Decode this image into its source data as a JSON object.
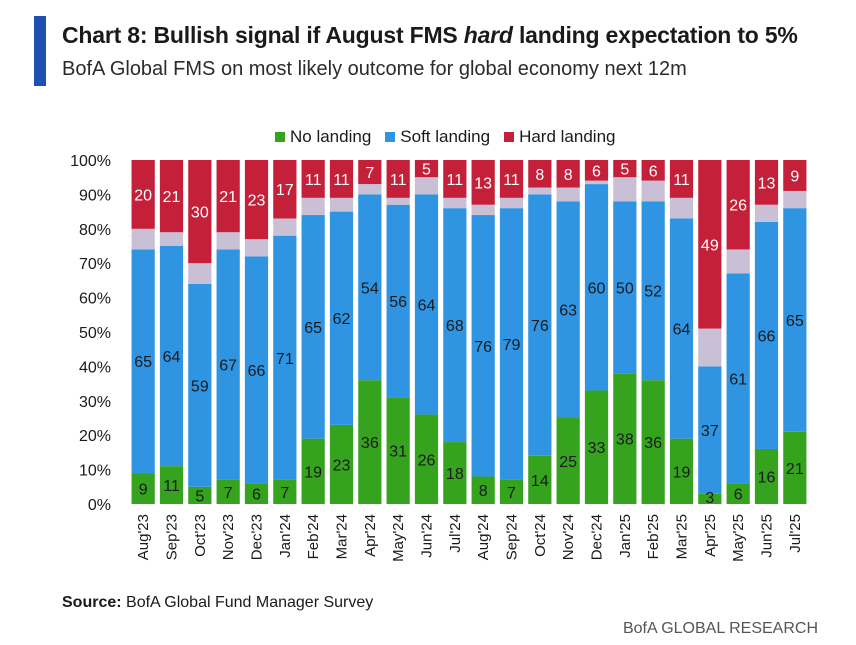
{
  "header": {
    "title_prefix": "Chart 8: Bullish signal if August FMS ",
    "title_emph": "hard",
    "title_suffix": " landing expectation to 5%",
    "subtitle": "BofA Global FMS on most likely outcome for global economy next 12m"
  },
  "colors": {
    "accent": "#1f4fb0",
    "no_landing": "#36a31f",
    "soft_landing": "#2f95e3",
    "hard_landing": "#c4203a",
    "other": "#c9c0d6"
  },
  "footer": {
    "source_label": "Source:",
    "source_text": " BofA Global Fund Manager Survey",
    "brand": "BofA GLOBAL RESEARCH"
  },
  "chart_data": {
    "type": "bar",
    "stacked": true,
    "title": "Chart 8: Bullish signal if August FMS hard landing expectation to 5%",
    "subtitle": "BofA Global FMS on most likely outcome for global economy next 12m",
    "xlabel": "",
    "ylabel": "",
    "ylim": [
      0,
      100
    ],
    "y_ticks": [
      "0%",
      "10%",
      "20%",
      "30%",
      "40%",
      "50%",
      "60%",
      "70%",
      "80%",
      "90%",
      "100%"
    ],
    "legend_position": "top",
    "categories": [
      "Aug'23",
      "Sep'23",
      "Oct'23",
      "Nov'23",
      "Dec'23",
      "Jan'24",
      "Feb'24",
      "Mar'24",
      "Apr'24",
      "May'24",
      "Jun'24",
      "Jul'24",
      "Aug'24",
      "Sep'24",
      "Oct'24",
      "Nov'24",
      "Dec'24",
      "Jan'25",
      "Feb'25",
      "Mar'25",
      "Apr'25",
      "May'25",
      "Jun'25",
      "Jul'25"
    ],
    "series": [
      {
        "name": "No landing",
        "values": [
          9,
          11,
          5,
          7,
          6,
          7,
          19,
          23,
          36,
          31,
          26,
          18,
          8,
          7,
          14,
          25,
          33,
          38,
          36,
          19,
          3,
          6,
          16,
          21
        ]
      },
      {
        "name": "Soft landing",
        "values": [
          65,
          64,
          59,
          67,
          66,
          71,
          65,
          62,
          54,
          56,
          64,
          68,
          76,
          79,
          76,
          63,
          60,
          50,
          52,
          64,
          37,
          61,
          66,
          65
        ]
      },
      {
        "name": "Hard landing",
        "values": [
          20,
          21,
          30,
          21,
          23,
          17,
          11,
          11,
          7,
          11,
          5,
          11,
          13,
          11,
          8,
          8,
          6,
          5,
          6,
          11,
          49,
          26,
          13,
          9
        ]
      }
    ]
  }
}
